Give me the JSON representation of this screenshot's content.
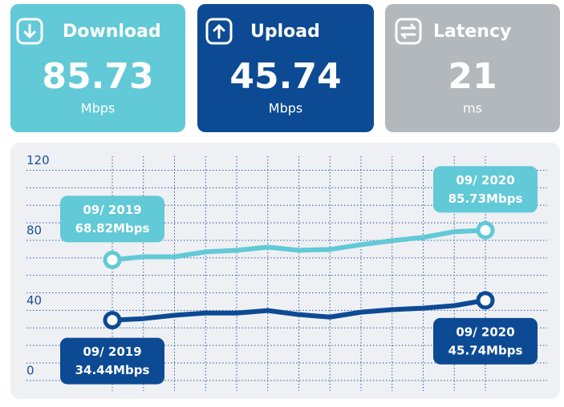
{
  "cards": [
    {
      "title": "Download",
      "value": 85.73,
      "unit": "Mbps"
    },
    {
      "title": "Upload",
      "value": 45.74,
      "unit": "Mbps"
    },
    {
      "title": "Latency",
      "value": 21,
      "unit": "ms"
    }
  ],
  "chart_data": {
    "type": "line",
    "categories": [
      "09/ 2019",
      null,
      null,
      null,
      null,
      null,
      null,
      null,
      null,
      null,
      null,
      null,
      "09/ 2020"
    ],
    "series": [
      {
        "name": "Download",
        "color": "#62c9d7",
        "label_position": "above",
        "values": [
          68.82,
          70.6,
          70.6,
          73.4,
          74.3,
          76.1,
          74.3,
          74.8,
          77.5,
          79.8,
          81.7,
          84.9,
          85.73
        ],
        "value_labels": [
          "68.82Mbps",
          null,
          null,
          null,
          null,
          null,
          null,
          null,
          null,
          null,
          null,
          null,
          "85.73Mbps"
        ]
      },
      {
        "name": "Upload",
        "color": "#0d4a94",
        "label_position": "below",
        "values": [
          34.44,
          35.3,
          37.2,
          38.5,
          38.5,
          39.9,
          37.6,
          36.2,
          39.0,
          40.4,
          41.3,
          42.7,
          45.74
        ],
        "value_labels": [
          "34.44Mbps",
          null,
          null,
          null,
          null,
          null,
          null,
          null,
          null,
          null,
          null,
          null,
          "45.74Mbps"
        ]
      }
    ],
    "ylim": [
      -6,
      128
    ],
    "yticks": [
      0,
      40,
      80,
      120
    ],
    "minor_yticks": [
      0,
      10,
      20,
      30,
      40,
      50,
      60,
      70,
      80,
      90,
      100,
      110,
      120
    ],
    "grid": true
  }
}
